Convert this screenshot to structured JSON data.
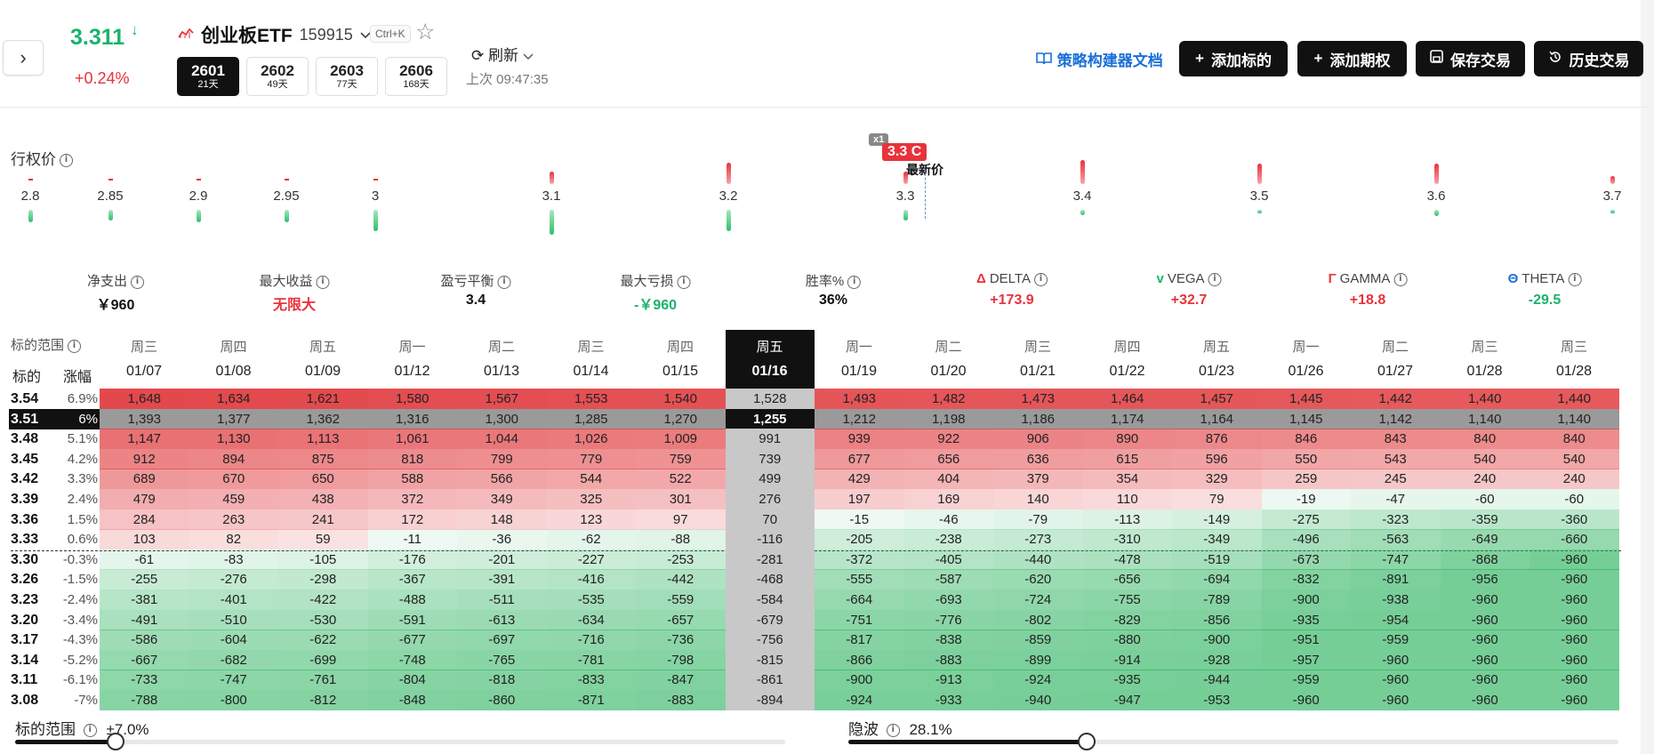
{
  "header": {
    "price": "3.311",
    "price_arrow": "↓",
    "change": "+0.24%",
    "etf_name": "创业板ETF",
    "etf_code": "159915",
    "shortcut": "Ctrl+K",
    "expiries": [
      {
        "main": "2601",
        "sub": "21天"
      },
      {
        "main": "2602",
        "sub": "49天"
      },
      {
        "main": "2603",
        "sub": "77天"
      },
      {
        "main": "2606",
        "sub": "168天"
      }
    ],
    "refresh_label": "刷新",
    "last_update": "上次 09:47:35",
    "doc_link": "策略构建器文档",
    "buttons": {
      "add_underlying": "添加标的",
      "add_option": "添加期权",
      "save_trade": "保存交易",
      "history": "历史交易"
    }
  },
  "strike_chart": {
    "label": "行权价",
    "strikes": [
      "2.8",
      "2.85",
      "2.9",
      "2.95",
      "3",
      "3.1",
      "3.2",
      "3.3",
      "3.4",
      "3.5",
      "3.6",
      "3.7"
    ],
    "position_badge": "x1",
    "position_label": "3.3 C",
    "latest_label": "最新价"
  },
  "metrics": [
    {
      "label": "净支出",
      "value": "￥960",
      "color": "#111111"
    },
    {
      "label": "最大收益",
      "value": "无限大",
      "color": "#e8323c"
    },
    {
      "label": "盈亏平衡",
      "value": "3.4",
      "color": "#111111"
    },
    {
      "label": "最大亏损",
      "value": "-￥960",
      "color": "#1ab36b"
    },
    {
      "label": "胜率%",
      "value": "36%",
      "color": "#111111"
    },
    {
      "label": "DELTA",
      "symbol": "Δ",
      "symbol_color": "#e8323c",
      "value": "+173.9",
      "color": "#e8323c"
    },
    {
      "label": "VEGA",
      "symbol": "v",
      "symbol_color": "#1ab36b",
      "value": "+32.7",
      "color": "#e8323c"
    },
    {
      "label": "GAMMA",
      "symbol": "Γ",
      "symbol_color": "#e8323c",
      "value": "+18.8",
      "color": "#e8323c"
    },
    {
      "label": "THETA",
      "symbol": "Θ",
      "symbol_color": "#1a6fd8",
      "value": "-29.5",
      "color": "#1ab36b"
    }
  ],
  "grid": {
    "range_label": "标的范围",
    "underlying_label": "标的",
    "change_label": "涨幅",
    "days": [
      {
        "dow": "周三",
        "date": "01/07"
      },
      {
        "dow": "周四",
        "date": "01/08"
      },
      {
        "dow": "周五",
        "date": "01/09"
      },
      {
        "dow": "周一",
        "date": "01/12"
      },
      {
        "dow": "周二",
        "date": "01/13"
      },
      {
        "dow": "周三",
        "date": "01/14"
      },
      {
        "dow": "周四",
        "date": "01/15"
      },
      {
        "dow": "周五",
        "date": "01/16"
      },
      {
        "dow": "周一",
        "date": "01/19"
      },
      {
        "dow": "周二",
        "date": "01/20"
      },
      {
        "dow": "周三",
        "date": "01/21"
      },
      {
        "dow": "周四",
        "date": "01/22"
      },
      {
        "dow": "周五",
        "date": "01/23"
      },
      {
        "dow": "周一",
        "date": "01/26"
      },
      {
        "dow": "周二",
        "date": "01/27"
      },
      {
        "dow": "周三",
        "date": "01/28"
      },
      {
        "dow": "周三",
        "date": "01/28"
      }
    ],
    "rows": [
      {
        "price": "3.54",
        "pct": "6.9%",
        "values": [
          "1,648",
          "1,634",
          "1,621",
          "1,580",
          "1,567",
          "1,553",
          "1,540",
          "1,528",
          "1,493",
          "1,482",
          "1,473",
          "1,464",
          "1,457",
          "1,445",
          "1,442",
          "1,440",
          "1,440"
        ]
      },
      {
        "price": "3.51",
        "pct": "6%",
        "values": [
          "1,393",
          "1,377",
          "1,362",
          "1,316",
          "1,300",
          "1,285",
          "1,270",
          "1,255",
          "1,212",
          "1,198",
          "1,186",
          "1,174",
          "1,164",
          "1,145",
          "1,142",
          "1,140",
          "1,140"
        ]
      },
      {
        "price": "3.48",
        "pct": "5.1%",
        "values": [
          "1,147",
          "1,130",
          "1,113",
          "1,061",
          "1,044",
          "1,026",
          "1,009",
          "991",
          "939",
          "922",
          "906",
          "890",
          "876",
          "846",
          "843",
          "840",
          "840"
        ]
      },
      {
        "price": "3.45",
        "pct": "4.2%",
        "values": [
          "912",
          "894",
          "875",
          "818",
          "799",
          "779",
          "759",
          "739",
          "677",
          "656",
          "636",
          "615",
          "596",
          "550",
          "543",
          "540",
          "540"
        ]
      },
      {
        "price": "3.42",
        "pct": "3.3%",
        "values": [
          "689",
          "670",
          "650",
          "588",
          "566",
          "544",
          "522",
          "499",
          "429",
          "404",
          "379",
          "354",
          "329",
          "259",
          "245",
          "240",
          "240"
        ]
      },
      {
        "price": "3.39",
        "pct": "2.4%",
        "values": [
          "479",
          "459",
          "438",
          "372",
          "349",
          "325",
          "301",
          "276",
          "197",
          "169",
          "140",
          "110",
          "79",
          "-19",
          "-47",
          "-60",
          "-60"
        ]
      },
      {
        "price": "3.36",
        "pct": "1.5%",
        "values": [
          "284",
          "263",
          "241",
          "172",
          "148",
          "123",
          "97",
          "70",
          "-15",
          "-46",
          "-79",
          "-113",
          "-149",
          "-275",
          "-323",
          "-359",
          "-360"
        ]
      },
      {
        "price": "3.33",
        "pct": "0.6%",
        "values": [
          "103",
          "82",
          "59",
          "-11",
          "-36",
          "-62",
          "-88",
          "-116",
          "-205",
          "-238",
          "-273",
          "-310",
          "-349",
          "-496",
          "-563",
          "-649",
          "-660"
        ]
      },
      {
        "price": "3.30",
        "pct": "-0.3%",
        "values": [
          "-61",
          "-83",
          "-105",
          "-176",
          "-201",
          "-227",
          "-253",
          "-281",
          "-372",
          "-405",
          "-440",
          "-478",
          "-519",
          "-673",
          "-747",
          "-868",
          "-960"
        ]
      },
      {
        "price": "3.26",
        "pct": "-1.5%",
        "values": [
          "-255",
          "-276",
          "-298",
          "-367",
          "-391",
          "-416",
          "-442",
          "-468",
          "-555",
          "-587",
          "-620",
          "-656",
          "-694",
          "-832",
          "-891",
          "-956",
          "-960"
        ]
      },
      {
        "price": "3.23",
        "pct": "-2.4%",
        "values": [
          "-381",
          "-401",
          "-422",
          "-488",
          "-511",
          "-535",
          "-559",
          "-584",
          "-664",
          "-693",
          "-724",
          "-755",
          "-789",
          "-900",
          "-938",
          "-960",
          "-960"
        ]
      },
      {
        "price": "3.20",
        "pct": "-3.4%",
        "values": [
          "-491",
          "-510",
          "-530",
          "-591",
          "-613",
          "-634",
          "-657",
          "-679",
          "-751",
          "-776",
          "-802",
          "-829",
          "-856",
          "-935",
          "-954",
          "-960",
          "-960"
        ]
      },
      {
        "price": "3.17",
        "pct": "-4.3%",
        "values": [
          "-586",
          "-604",
          "-622",
          "-677",
          "-697",
          "-716",
          "-736",
          "-756",
          "-817",
          "-838",
          "-859",
          "-880",
          "-900",
          "-951",
          "-959",
          "-960",
          "-960"
        ]
      },
      {
        "price": "3.14",
        "pct": "-5.2%",
        "values": [
          "-667",
          "-682",
          "-699",
          "-748",
          "-765",
          "-781",
          "-798",
          "-815",
          "-866",
          "-883",
          "-899",
          "-914",
          "-928",
          "-957",
          "-960",
          "-960",
          "-960"
        ]
      },
      {
        "price": "3.11",
        "pct": "-6.1%",
        "values": [
          "-733",
          "-747",
          "-761",
          "-804",
          "-818",
          "-833",
          "-847",
          "-861",
          "-900",
          "-913",
          "-924",
          "-935",
          "-944",
          "-959",
          "-960",
          "-960",
          "-960"
        ]
      },
      {
        "price": "3.08",
        "pct": "-7%",
        "values": [
          "-788",
          "-800",
          "-812",
          "-848",
          "-860",
          "-871",
          "-883",
          "-894",
          "-924",
          "-933",
          "-940",
          "-947",
          "-953",
          "-960",
          "-960",
          "-960",
          "-960"
        ]
      }
    ]
  },
  "sliders": {
    "range": {
      "label": "标的范围",
      "value": "±7.0%",
      "fraction": 0.13
    },
    "iv": {
      "label": "隐波",
      "value": "28.1%",
      "fraction": 0.31
    }
  }
}
